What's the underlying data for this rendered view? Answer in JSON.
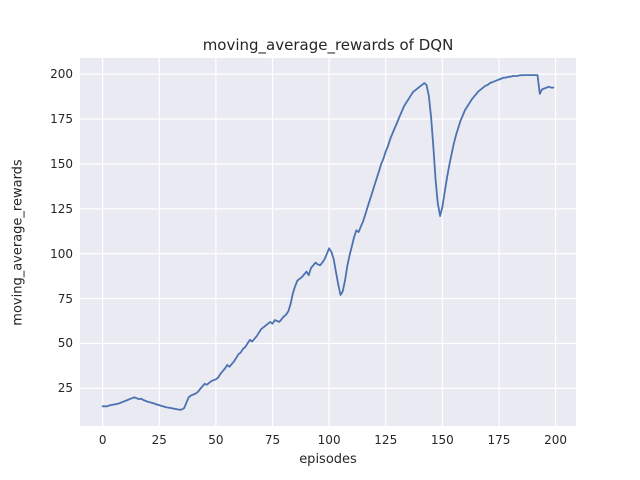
{
  "chart_data": {
    "type": "line",
    "title": "moving_average_rewards of DQN",
    "xlabel": "episodes",
    "ylabel": "moving_average_rewards",
    "xlim": [
      -10,
      209
    ],
    "ylim": [
      4,
      209
    ],
    "xticks": [
      0,
      25,
      50,
      75,
      100,
      125,
      150,
      175,
      200
    ],
    "yticks": [
      25,
      50,
      75,
      100,
      125,
      150,
      175,
      200
    ],
    "grid": true,
    "legend_position": "none",
    "colors": {
      "line": "#4C72B0",
      "plot_background": "#EAEAF2",
      "gridline": "#FFFFFF",
      "text": "#262626",
      "figure_background": "#FFFFFF"
    },
    "series": [
      {
        "name": "moving_average_rewards",
        "points": [
          [
            0,
            15
          ],
          [
            2,
            15
          ],
          [
            3,
            15.5
          ],
          [
            5,
            16
          ],
          [
            7,
            16.5
          ],
          [
            9,
            17.5
          ],
          [
            11,
            18.5
          ],
          [
            12,
            19
          ],
          [
            13,
            19.5
          ],
          [
            14,
            20
          ],
          [
            15,
            19.5
          ],
          [
            16,
            19
          ],
          [
            17,
            19.2
          ],
          [
            18,
            18.5
          ],
          [
            20,
            17.5
          ],
          [
            22,
            16.8
          ],
          [
            24,
            16
          ],
          [
            26,
            15.2
          ],
          [
            28,
            14.5
          ],
          [
            30,
            14
          ],
          [
            32,
            13.5
          ],
          [
            34,
            13
          ],
          [
            35,
            13.2
          ],
          [
            36,
            14
          ],
          [
            37,
            17
          ],
          [
            38,
            20
          ],
          [
            39,
            21
          ],
          [
            40,
            21.5
          ],
          [
            41,
            22
          ],
          [
            42,
            23
          ],
          [
            43,
            24.5
          ],
          [
            44,
            26
          ],
          [
            45,
            27.5
          ],
          [
            46,
            27
          ],
          [
            47,
            28
          ],
          [
            48,
            29
          ],
          [
            49,
            29.5
          ],
          [
            50,
            30
          ],
          [
            51,
            31
          ],
          [
            52,
            33
          ],
          [
            53,
            34.5
          ],
          [
            54,
            36
          ],
          [
            55,
            38
          ],
          [
            56,
            37
          ],
          [
            57,
            38.5
          ],
          [
            58,
            40
          ],
          [
            59,
            42
          ],
          [
            60,
            44
          ],
          [
            61,
            45
          ],
          [
            62,
            47
          ],
          [
            63,
            48
          ],
          [
            64,
            50
          ],
          [
            65,
            52
          ],
          [
            66,
            51
          ],
          [
            67,
            52.5
          ],
          [
            68,
            54
          ],
          [
            69,
            56
          ],
          [
            70,
            58
          ],
          [
            71,
            59
          ],
          [
            72,
            60
          ],
          [
            73,
            61
          ],
          [
            74,
            62
          ],
          [
            75,
            61
          ],
          [
            76,
            63
          ],
          [
            77,
            62.5
          ],
          [
            78,
            62
          ],
          [
            79,
            63.5
          ],
          [
            80,
            65
          ],
          [
            81,
            66
          ],
          [
            82,
            68
          ],
          [
            83,
            72
          ],
          [
            84,
            78
          ],
          [
            85,
            82
          ],
          [
            86,
            85
          ],
          [
            87,
            86
          ],
          [
            88,
            87
          ],
          [
            89,
            88.5
          ],
          [
            90,
            90
          ],
          [
            91,
            88
          ],
          [
            92,
            92
          ],
          [
            93,
            93.5
          ],
          [
            94,
            95
          ],
          [
            95,
            94
          ],
          [
            96,
            93.5
          ],
          [
            97,
            95
          ],
          [
            98,
            97
          ],
          [
            99,
            100
          ],
          [
            100,
            103
          ],
          [
            101,
            101
          ],
          [
            102,
            97
          ],
          [
            103,
            90
          ],
          [
            104,
            83
          ],
          [
            105,
            77
          ],
          [
            106,
            79
          ],
          [
            107,
            85
          ],
          [
            108,
            93
          ],
          [
            109,
            99
          ],
          [
            110,
            104
          ],
          [
            111,
            109
          ],
          [
            112,
            113
          ],
          [
            113,
            112
          ],
          [
            114,
            115
          ],
          [
            115,
            118
          ],
          [
            116,
            122
          ],
          [
            117,
            126
          ],
          [
            118,
            130
          ],
          [
            119,
            134
          ],
          [
            120,
            138
          ],
          [
            121,
            142
          ],
          [
            122,
            146
          ],
          [
            123,
            150
          ],
          [
            124,
            153
          ],
          [
            125,
            157
          ],
          [
            126,
            160
          ],
          [
            127,
            164
          ],
          [
            128,
            167
          ],
          [
            129,
            170
          ],
          [
            130,
            173
          ],
          [
            131,
            176
          ],
          [
            132,
            179
          ],
          [
            133,
            182
          ],
          [
            134,
            184
          ],
          [
            135,
            186
          ],
          [
            136,
            188
          ],
          [
            137,
            190
          ],
          [
            138,
            191
          ],
          [
            139,
            192
          ],
          [
            140,
            193
          ],
          [
            141,
            194
          ],
          [
            142,
            195
          ],
          [
            143,
            194
          ],
          [
            144,
            188
          ],
          [
            145,
            176
          ],
          [
            146,
            160
          ],
          [
            147,
            141
          ],
          [
            148,
            128
          ],
          [
            149,
            121
          ],
          [
            150,
            126
          ],
          [
            151,
            134
          ],
          [
            152,
            142
          ],
          [
            153,
            149
          ],
          [
            154,
            155
          ],
          [
            155,
            161
          ],
          [
            156,
            166
          ],
          [
            157,
            170
          ],
          [
            158,
            174
          ],
          [
            159,
            177
          ],
          [
            160,
            180
          ],
          [
            161,
            182
          ],
          [
            162,
            184
          ],
          [
            163,
            186
          ],
          [
            164,
            187.5
          ],
          [
            165,
            189
          ],
          [
            166,
            190.5
          ],
          [
            167,
            191.5
          ],
          [
            168,
            192.5
          ],
          [
            169,
            193.5
          ],
          [
            170,
            194
          ],
          [
            171,
            195
          ],
          [
            172,
            195.5
          ],
          [
            173,
            196
          ],
          [
            174,
            196.5
          ],
          [
            175,
            197
          ],
          [
            176,
            197.5
          ],
          [
            177,
            198
          ],
          [
            178,
            198
          ],
          [
            179,
            198.5
          ],
          [
            180,
            198.5
          ],
          [
            181,
            199
          ],
          [
            182,
            199
          ],
          [
            183,
            199
          ],
          [
            184,
            199.3
          ],
          [
            185,
            199.4
          ],
          [
            186,
            199.5
          ],
          [
            187,
            199.5
          ],
          [
            188,
            199.5
          ],
          [
            189,
            199.5
          ],
          [
            190,
            199.5
          ],
          [
            191,
            199.5
          ],
          [
            192,
            199.5
          ],
          [
            193,
            189
          ],
          [
            194,
            191.5
          ],
          [
            195,
            192
          ],
          [
            196,
            192.5
          ],
          [
            197,
            193
          ],
          [
            198,
            192.5
          ],
          [
            199,
            192.5
          ]
        ]
      }
    ]
  }
}
